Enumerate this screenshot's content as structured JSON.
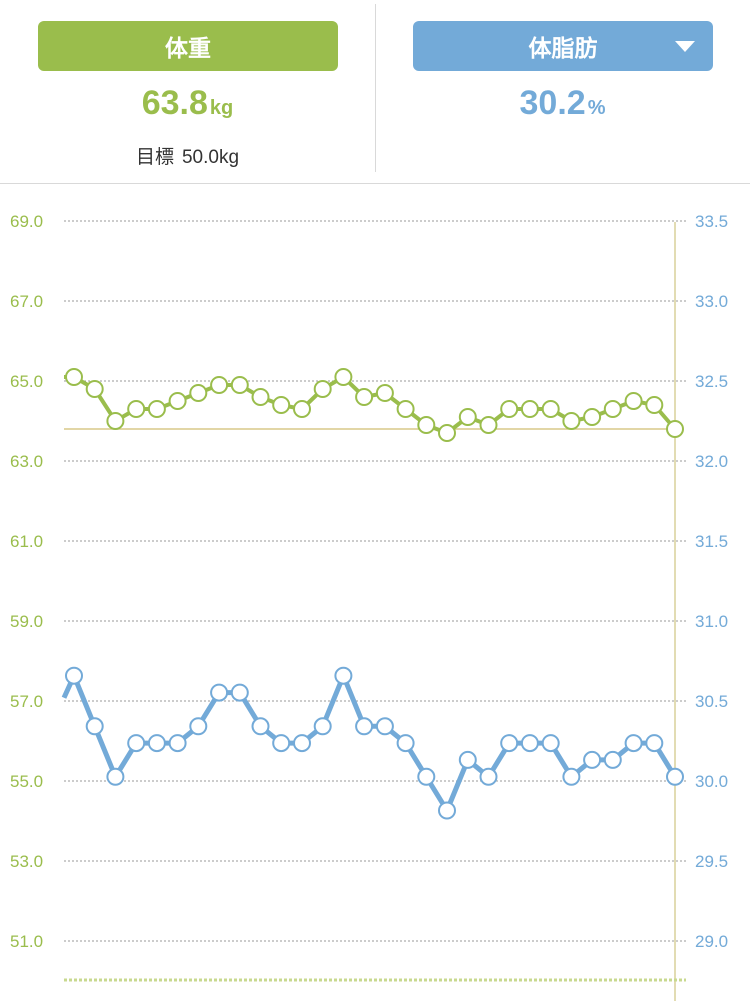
{
  "header": {
    "weight_tab": {
      "label": "体重",
      "value": "63.8",
      "unit": "kg"
    },
    "fat_tab": {
      "label": "体脂肪",
      "value": "30.2",
      "unit": "%",
      "dropdown_icon": "chevron-down-icon"
    },
    "goal": {
      "label": "目標",
      "value": "50.0kg"
    }
  },
  "colors": {
    "weight": "#9abd4c",
    "fat": "#73aad8",
    "grid": "#999999"
  },
  "chart_data": {
    "type": "line",
    "title": "",
    "grid": true,
    "left_axis": {
      "ticks": [
        "69.0",
        "67.0",
        "65.0",
        "63.0",
        "61.0",
        "59.0",
        "57.0",
        "55.0",
        "53.0",
        "51.0"
      ],
      "range": [
        49.0,
        69.0
      ]
    },
    "right_axis": {
      "ticks": [
        "33.5",
        "33.0",
        "32.5",
        "32.0",
        "31.5",
        "31.0",
        "30.5",
        "30.0",
        "29.5",
        "29.0"
      ],
      "range": [
        28.75,
        33.5
      ]
    },
    "series": [
      {
        "axis": "left",
        "values": [
          65.1,
          64.8,
          64.0,
          64.3,
          64.3,
          64.5,
          64.7,
          64.9,
          64.9,
          64.6,
          64.4,
          64.3,
          64.8,
          65.1,
          64.6,
          64.7,
          64.3,
          63.9,
          63.7,
          64.1,
          63.9,
          64.3,
          64.3,
          64.3,
          64.0,
          64.1,
          64.3,
          64.5,
          64.4,
          63.8
        ]
      },
      {
        "axis": "right",
        "values": [
          30.8,
          30.5,
          30.2,
          30.4,
          30.4,
          30.4,
          30.5,
          30.7,
          30.7,
          30.5,
          30.4,
          30.4,
          30.5,
          30.8,
          30.5,
          30.5,
          30.4,
          30.2,
          30.0,
          30.3,
          30.2,
          30.4,
          30.4,
          30.4,
          30.2,
          30.3,
          30.3,
          30.4,
          30.4,
          30.2
        ]
      }
    ],
    "reference_line": {
      "axis": "left",
      "value": 63.8
    }
  }
}
